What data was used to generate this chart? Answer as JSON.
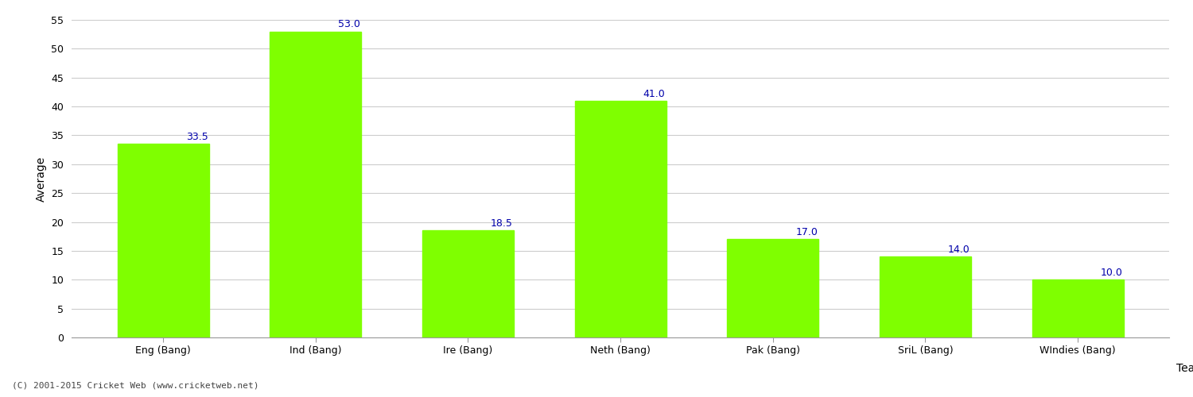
{
  "categories": [
    "Eng (Bang)",
    "Ind (Bang)",
    "Ire (Bang)",
    "Neth (Bang)",
    "Pak (Bang)",
    "SriL (Bang)",
    "WIndies (Bang)"
  ],
  "values": [
    33.5,
    53.0,
    18.5,
    41.0,
    17.0,
    14.0,
    10.0
  ],
  "bar_color": "#7FFF00",
  "bar_edge_color": "#7FFF00",
  "label_color": "#0000AA",
  "xlabel": "Team",
  "ylabel": "Average",
  "ylim": [
    0,
    55
  ],
  "yticks": [
    0,
    5,
    10,
    15,
    20,
    25,
    30,
    35,
    40,
    45,
    50,
    55
  ],
  "background_color": "#ffffff",
  "grid_color": "#cccccc",
  "label_fontsize": 9,
  "axis_fontsize": 10,
  "bar_width": 0.6,
  "footer": "(C) 2001-2015 Cricket Web (www.cricketweb.net)"
}
